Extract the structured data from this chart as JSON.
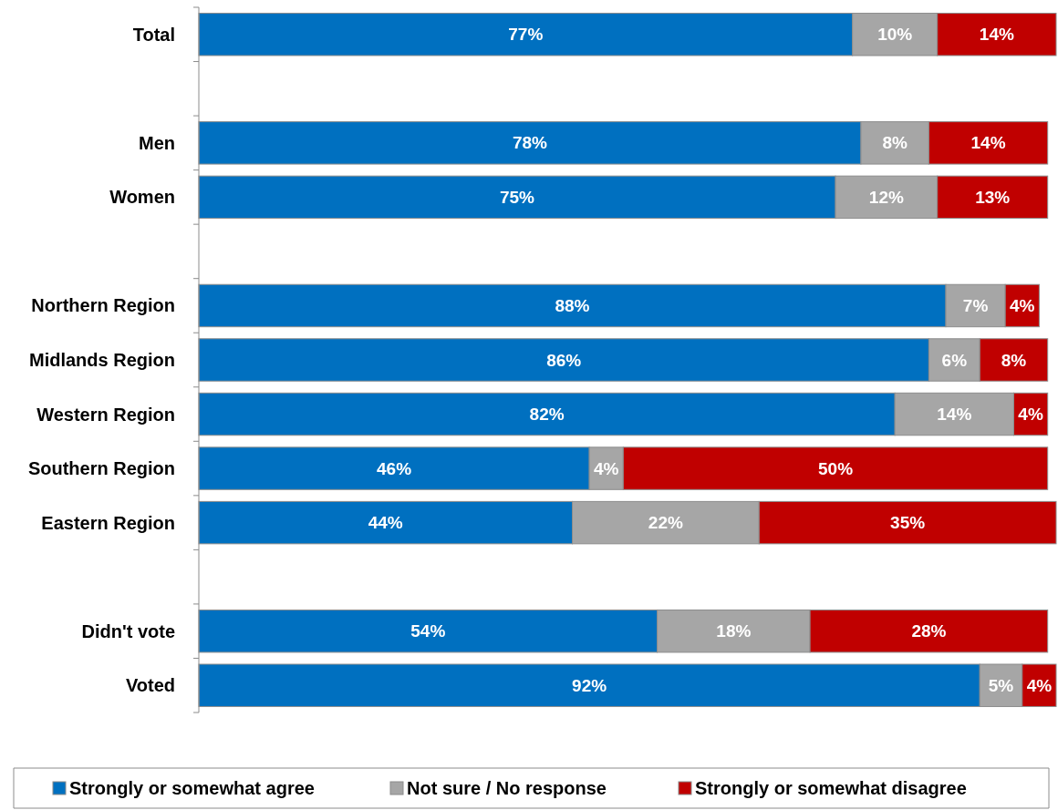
{
  "chart_data": {
    "type": "bar",
    "orientation": "horizontal",
    "stacked": true,
    "categories": [
      "Total",
      null,
      "Men",
      "Women",
      null,
      "Northern Region",
      "Midlands Region",
      "Western Region",
      "Southern Region",
      "Eastern Region",
      null,
      "Didn't vote",
      "Voted"
    ],
    "series": [
      {
        "name": "Strongly or somewhat agree",
        "color": "#0070c0",
        "values": [
          77,
          null,
          78,
          75,
          null,
          88,
          86,
          82,
          46,
          44,
          null,
          54,
          92
        ],
        "value_labels": [
          "77%",
          null,
          "78%",
          "75%",
          null,
          "88%",
          "86%",
          "82%",
          "46%",
          "44%",
          null,
          "54%",
          "92%"
        ]
      },
      {
        "name": "Not sure / No response",
        "color": "#a6a6a6",
        "values": [
          10,
          null,
          8,
          12,
          null,
          7,
          6,
          14,
          4,
          22,
          null,
          18,
          5
        ],
        "value_labels": [
          "10%",
          null,
          "8%",
          "12%",
          null,
          "7%",
          "6%",
          "14%",
          "4%",
          "22%",
          null,
          "18%",
          "5%"
        ]
      },
      {
        "name": "Strongly or somewhat disagree",
        "color": "#c00000",
        "values": [
          14,
          null,
          14,
          13,
          null,
          4,
          8,
          4,
          50,
          35,
          null,
          28,
          4
        ],
        "value_labels": [
          "14%",
          null,
          "14%",
          "13%",
          null,
          "4%",
          "8%",
          "4%",
          "50%",
          "35%",
          null,
          "28%",
          "4%"
        ]
      }
    ],
    "xlim": [
      0,
      101
    ],
    "tick_labels": "y",
    "legend": "bottom"
  }
}
